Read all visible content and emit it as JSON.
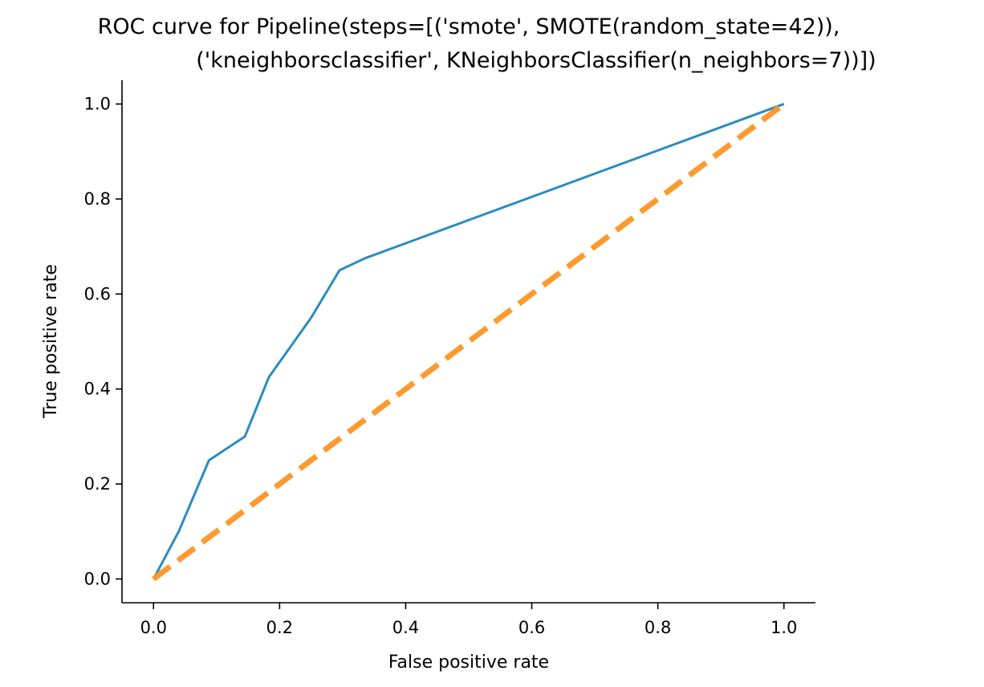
{
  "chart_data": {
    "type": "line",
    "title_line1": "ROC curve for Pipeline(steps=[('smote', SMOTE(random_state=42)),",
    "title_line2": "('kneighborsclassifier', KNeighborsClassifier(n_neighbors=7))])",
    "xlabel": "False positive rate",
    "ylabel": "True positive rate",
    "xlim": [
      -0.05,
      1.05
    ],
    "ylim": [
      -0.05,
      1.05
    ],
    "xticks": [
      "0.0",
      "0.2",
      "0.4",
      "0.6",
      "0.8",
      "1.0"
    ],
    "yticks": [
      "0.0",
      "0.2",
      "0.4",
      "0.6",
      "0.8",
      "1.0"
    ],
    "grid": false,
    "series": [
      {
        "style": "solid",
        "color": "#2b8cbe",
        "x": [
          0.0,
          0.04,
          0.088,
          0.145,
          0.183,
          0.25,
          0.295,
          0.335,
          1.0
        ],
        "y": [
          0.0,
          0.1,
          0.25,
          0.3,
          0.425,
          0.55,
          0.65,
          0.675,
          1.0
        ]
      },
      {
        "style": "dashed",
        "color": "#fd9a2f",
        "x": [
          0.0,
          1.0
        ],
        "y": [
          0.0,
          1.0
        ]
      }
    ]
  }
}
